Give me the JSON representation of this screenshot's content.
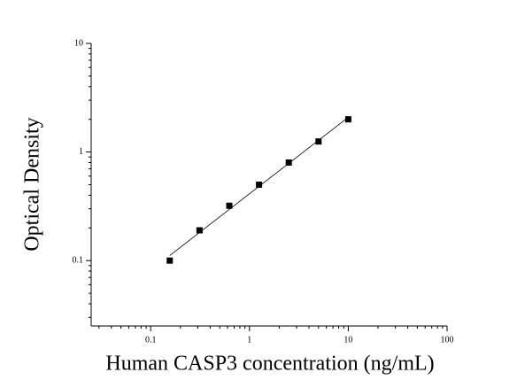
{
  "chart_data": {
    "type": "scatter",
    "x_label": "Human CASP3 concentration (ng/mL)",
    "y_label": "Optical Density",
    "x": [
      0.156,
      0.312,
      0.625,
      1.25,
      2.5,
      5,
      10
    ],
    "values": [
      0.1,
      0.19,
      0.32,
      0.5,
      0.8,
      1.25,
      2.0
    ],
    "color": "#000000",
    "xlim": [
      0.025,
      100
    ],
    "ylim": [
      0.025,
      10
    ],
    "xticks": [
      0.1,
      1,
      10,
      100
    ],
    "yticks": [
      0.1,
      1,
      10
    ],
    "xscale": "log",
    "yscale": "log",
    "fit_line": true
  }
}
